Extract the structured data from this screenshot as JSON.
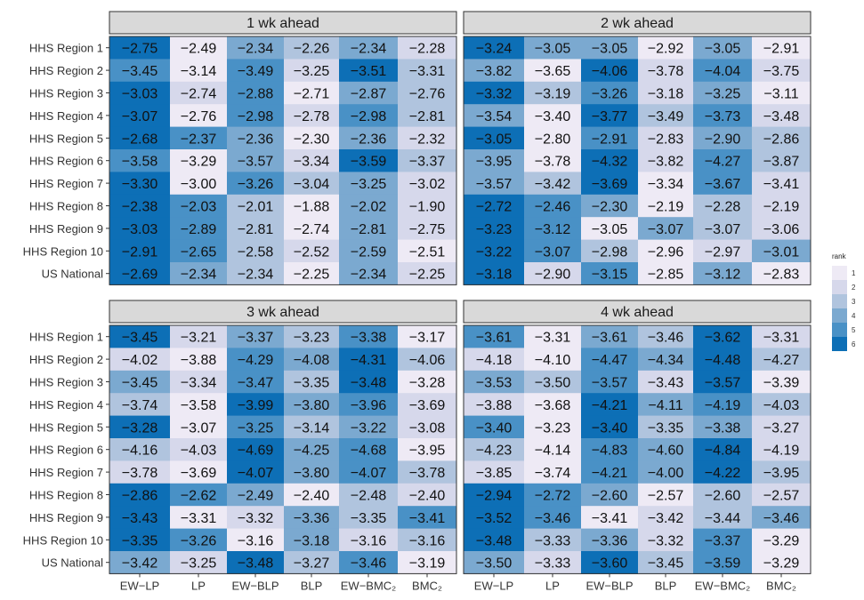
{
  "chart_data": {
    "type": "heatmap",
    "rows": [
      "HHS Region 1",
      "HHS Region 2",
      "HHS Region 3",
      "HHS Region 4",
      "HHS Region 5",
      "HHS Region 6",
      "HHS Region 7",
      "HHS Region 8",
      "HHS Region 9",
      "HHS Region 10",
      "US National"
    ],
    "columns": [
      "EW−LP",
      "LP",
      "EW−BLP",
      "BLP",
      "EW−BMC₂",
      "BMC₂"
    ],
    "legend": {
      "title": "rank",
      "levels": [
        1,
        2,
        3,
        4,
        5,
        6
      ],
      "colors": [
        "#eeeaf5",
        "#d6d8eb",
        "#b0c4de",
        "#7ba9d0",
        "#4991c6",
        "#0d6fb6"
      ],
      "position": "right"
    },
    "panels": [
      {
        "title": "1 wk ahead",
        "labels": [
          [
            "−2.75",
            "−2.49",
            "−2.34",
            "−2.26",
            "−2.34",
            "−2.28"
          ],
          [
            "−3.45",
            "−3.14",
            "−3.49",
            "−3.25",
            "−3.51",
            "−3.31"
          ],
          [
            "−3.03",
            "−2.74",
            "−2.88",
            "−2.71",
            "−2.87",
            "−2.76"
          ],
          [
            "−3.07",
            "−2.76",
            "−2.98",
            "−2.78",
            "−2.98",
            "−2.81"
          ],
          [
            "−2.68",
            "−2.37",
            "−2.36",
            "−2.30",
            "−2.36",
            "−2.32"
          ],
          [
            "−3.58",
            "−3.29",
            "−3.57",
            "−3.34",
            "−3.59",
            "−3.37"
          ],
          [
            "−3.30",
            "−3.00",
            "−3.26",
            "−3.04",
            "−3.25",
            "−3.02"
          ],
          [
            "−2.38",
            "−2.03",
            "−2.01",
            "−1.88",
            "−2.02",
            "−1.90"
          ],
          [
            "−3.03",
            "−2.89",
            "−2.81",
            "−2.74",
            "−2.81",
            "−2.75"
          ],
          [
            "−2.91",
            "−2.65",
            "−2.58",
            "−2.52",
            "−2.59",
            "−2.51"
          ],
          [
            "−2.69",
            "−2.34",
            "−2.34",
            "−2.25",
            "−2.34",
            "−2.25"
          ]
        ],
        "ranks": [
          [
            6,
            1,
            4,
            3,
            4,
            2
          ],
          [
            5,
            1,
            5,
            2,
            6,
            3
          ],
          [
            6,
            2,
            5,
            1,
            4,
            3
          ],
          [
            6,
            1,
            5,
            2,
            5,
            3
          ],
          [
            6,
            5,
            4,
            1,
            4,
            2
          ],
          [
            5,
            1,
            4,
            2,
            6,
            3
          ],
          [
            6,
            1,
            5,
            3,
            4,
            2
          ],
          [
            6,
            5,
            3,
            1,
            4,
            2
          ],
          [
            6,
            5,
            3,
            1,
            4,
            2
          ],
          [
            6,
            5,
            3,
            2,
            4,
            1
          ],
          [
            6,
            4,
            3,
            1,
            4,
            2
          ]
        ]
      },
      {
        "title": "2 wk ahead",
        "labels": [
          [
            "−3.24",
            "−3.05",
            "−3.05",
            "−2.92",
            "−3.05",
            "−2.91"
          ],
          [
            "−3.82",
            "−3.65",
            "−4.06",
            "−3.78",
            "−4.04",
            "−3.75"
          ],
          [
            "−3.32",
            "−3.19",
            "−3.26",
            "−3.18",
            "−3.25",
            "−3.11"
          ],
          [
            "−3.54",
            "−3.40",
            "−3.77",
            "−3.49",
            "−3.73",
            "−3.48"
          ],
          [
            "−3.05",
            "−2.80",
            "−2.91",
            "−2.83",
            "−2.90",
            "−2.86"
          ],
          [
            "−3.95",
            "−3.78",
            "−4.32",
            "−3.82",
            "−4.27",
            "−3.87"
          ],
          [
            "−3.57",
            "−3.42",
            "−3.69",
            "−3.34",
            "−3.67",
            "−3.41"
          ],
          [
            "−2.72",
            "−2.46",
            "−2.30",
            "−2.19",
            "−2.28",
            "−2.19"
          ],
          [
            "−3.23",
            "−3.12",
            "−3.05",
            "−3.07",
            "−3.07",
            "−3.06"
          ],
          [
            "−3.22",
            "−3.07",
            "−2.98",
            "−2.96",
            "−2.97",
            "−3.01"
          ],
          [
            "−3.18",
            "−2.90",
            "−3.15",
            "−2.85",
            "−3.12",
            "−2.83"
          ]
        ],
        "ranks": [
          [
            6,
            4,
            4,
            1,
            4,
            1
          ],
          [
            4,
            1,
            6,
            2,
            5,
            2
          ],
          [
            6,
            3,
            5,
            2,
            4,
            1
          ],
          [
            4,
            1,
            6,
            3,
            5,
            2
          ],
          [
            6,
            1,
            5,
            2,
            4,
            3
          ],
          [
            4,
            1,
            6,
            2,
            5,
            3
          ],
          [
            4,
            3,
            6,
            1,
            5,
            2
          ],
          [
            6,
            5,
            4,
            1,
            3,
            2
          ],
          [
            6,
            5,
            1,
            4,
            3,
            2
          ],
          [
            6,
            5,
            3,
            1,
            2,
            4
          ],
          [
            6,
            2,
            5,
            1,
            4,
            1
          ]
        ]
      },
      {
        "title": "3 wk ahead",
        "labels": [
          [
            "−3.45",
            "−3.21",
            "−3.37",
            "−3.23",
            "−3.38",
            "−3.17"
          ],
          [
            "−4.02",
            "−3.88",
            "−4.29",
            "−4.08",
            "−4.31",
            "−4.06"
          ],
          [
            "−3.45",
            "−3.34",
            "−3.47",
            "−3.35",
            "−3.48",
            "−3.28"
          ],
          [
            "−3.74",
            "−3.58",
            "−3.99",
            "−3.80",
            "−3.96",
            "−3.69"
          ],
          [
            "−3.28",
            "−3.07",
            "−3.25",
            "−3.14",
            "−3.22",
            "−3.08"
          ],
          [
            "−4.16",
            "−4.03",
            "−4.69",
            "−4.25",
            "−4.68",
            "−3.95"
          ],
          [
            "−3.78",
            "−3.69",
            "−4.07",
            "−3.80",
            "−4.07",
            "−3.78"
          ],
          [
            "−2.86",
            "−2.62",
            "−2.49",
            "−2.40",
            "−2.48",
            "−2.40"
          ],
          [
            "−3.43",
            "−3.31",
            "−3.32",
            "−3.36",
            "−3.35",
            "−3.41"
          ],
          [
            "−3.35",
            "−3.26",
            "−3.16",
            "−3.18",
            "−3.16",
            "−3.16"
          ],
          [
            "−3.42",
            "−3.25",
            "−3.48",
            "−3.27",
            "−3.46",
            "−3.19"
          ]
        ],
        "ranks": [
          [
            6,
            2,
            4,
            3,
            5,
            1
          ],
          [
            2,
            1,
            5,
            4,
            6,
            3
          ],
          [
            4,
            2,
            5,
            3,
            6,
            1
          ],
          [
            3,
            1,
            6,
            4,
            5,
            2
          ],
          [
            6,
            1,
            5,
            3,
            4,
            2
          ],
          [
            3,
            2,
            6,
            4,
            5,
            1
          ],
          [
            2,
            1,
            6,
            4,
            5,
            3
          ],
          [
            6,
            5,
            4,
            1,
            3,
            2
          ],
          [
            6,
            1,
            2,
            4,
            3,
            5
          ],
          [
            6,
            5,
            1,
            4,
            2,
            3
          ],
          [
            4,
            2,
            6,
            3,
            5,
            1
          ]
        ]
      },
      {
        "title": "4 wk ahead",
        "labels": [
          [
            "−3.61",
            "−3.31",
            "−3.61",
            "−3.46",
            "−3.62",
            "−3.31"
          ],
          [
            "−4.18",
            "−4.10",
            "−4.47",
            "−4.34",
            "−4.48",
            "−4.27"
          ],
          [
            "−3.53",
            "−3.50",
            "−3.57",
            "−3.43",
            "−3.57",
            "−3.39"
          ],
          [
            "−3.88",
            "−3.68",
            "−4.21",
            "−4.11",
            "−4.19",
            "−4.03"
          ],
          [
            "−3.40",
            "−3.23",
            "−3.40",
            "−3.35",
            "−3.38",
            "−3.27"
          ],
          [
            "−4.23",
            "−4.14",
            "−4.83",
            "−4.60",
            "−4.84",
            "−4.19"
          ],
          [
            "−3.85",
            "−3.74",
            "−4.21",
            "−4.00",
            "−4.22",
            "−3.95"
          ],
          [
            "−2.94",
            "−2.72",
            "−2.60",
            "−2.57",
            "−2.60",
            "−2.57"
          ],
          [
            "−3.52",
            "−3.46",
            "−3.41",
            "−3.42",
            "−3.44",
            "−3.46"
          ],
          [
            "−3.48",
            "−3.33",
            "−3.36",
            "−3.32",
            "−3.37",
            "−3.29"
          ],
          [
            "−3.50",
            "−3.33",
            "−3.60",
            "−3.45",
            "−3.59",
            "−3.29"
          ]
        ],
        "ranks": [
          [
            5,
            1,
            4,
            3,
            6,
            2
          ],
          [
            2,
            1,
            5,
            4,
            6,
            3
          ],
          [
            4,
            3,
            5,
            2,
            6,
            1
          ],
          [
            2,
            1,
            6,
            4,
            5,
            3
          ],
          [
            5,
            1,
            6,
            3,
            4,
            2
          ],
          [
            3,
            1,
            5,
            4,
            6,
            2
          ],
          [
            2,
            1,
            5,
            4,
            6,
            3
          ],
          [
            6,
            5,
            4,
            1,
            3,
            2
          ],
          [
            6,
            5,
            1,
            2,
            3,
            4
          ],
          [
            6,
            3,
            4,
            2,
            5,
            1
          ],
          [
            4,
            2,
            6,
            3,
            5,
            1
          ]
        ]
      }
    ]
  }
}
